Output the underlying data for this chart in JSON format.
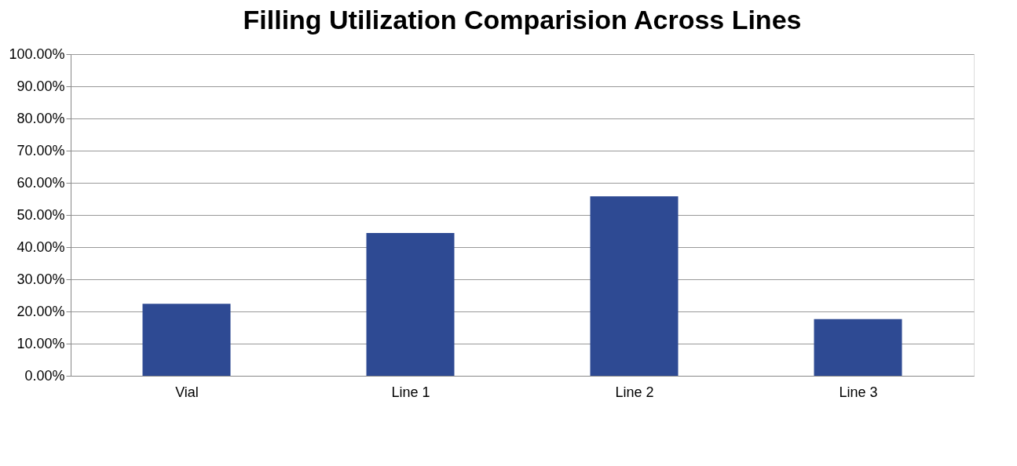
{
  "chart_data": {
    "type": "bar",
    "title": "Filling Utilization Comparision Across Lines",
    "categories": [
      "Vial",
      "Line 1",
      "Line 2",
      "Line 3"
    ],
    "values": [
      22.4,
      44.4,
      55.8,
      17.6
    ],
    "color": "#2e4a93",
    "ylim": [
      0,
      100
    ],
    "yticks": [
      {
        "value": 0,
        "label": "0.00%"
      },
      {
        "value": 10,
        "label": "10.00%"
      },
      {
        "value": 20,
        "label": "20.00%"
      },
      {
        "value": 30,
        "label": "30.00%"
      },
      {
        "value": 40,
        "label": "40.00%"
      },
      {
        "value": 50,
        "label": "50.00%"
      },
      {
        "value": 60,
        "label": "60.00%"
      },
      {
        "value": 70,
        "label": "70.00%"
      },
      {
        "value": 80,
        "label": "80.00%"
      },
      {
        "value": 90,
        "label": "90.00%"
      },
      {
        "value": 100,
        "label": "100.00%"
      }
    ],
    "grid": "y"
  }
}
